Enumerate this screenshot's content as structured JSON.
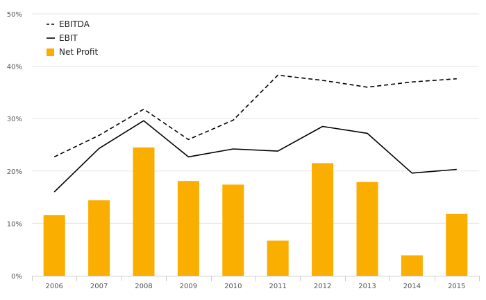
{
  "chart_data": {
    "type": "bar",
    "categories": [
      "2006",
      "2007",
      "2008",
      "2009",
      "2010",
      "2011",
      "2012",
      "2013",
      "2014",
      "2015"
    ],
    "series": [
      {
        "name": "EBITDA",
        "type": "line",
        "style": "dashed",
        "color": "#000000",
        "values": [
          22.7,
          26.8,
          31.8,
          26.0,
          29.7,
          38.3,
          37.3,
          36.0,
          37.0,
          37.6
        ]
      },
      {
        "name": "EBIT",
        "type": "line",
        "style": "solid",
        "color": "#000000",
        "values": [
          16.0,
          24.3,
          29.6,
          22.7,
          24.2,
          23.8,
          28.5,
          27.2,
          19.6,
          20.3
        ]
      },
      {
        "name": "Net Profit",
        "type": "bar",
        "color": "#F9AE00",
        "values": [
          11.6,
          14.4,
          24.5,
          18.1,
          17.4,
          6.7,
          21.5,
          17.9,
          3.9,
          11.8
        ]
      }
    ],
    "y_ticks": [
      "0%",
      "10%",
      "20%",
      "30%",
      "40%",
      "50%"
    ],
    "ylim": [
      0,
      50
    ],
    "y_unit": "%",
    "grid": true,
    "legend_position": "top-left"
  }
}
